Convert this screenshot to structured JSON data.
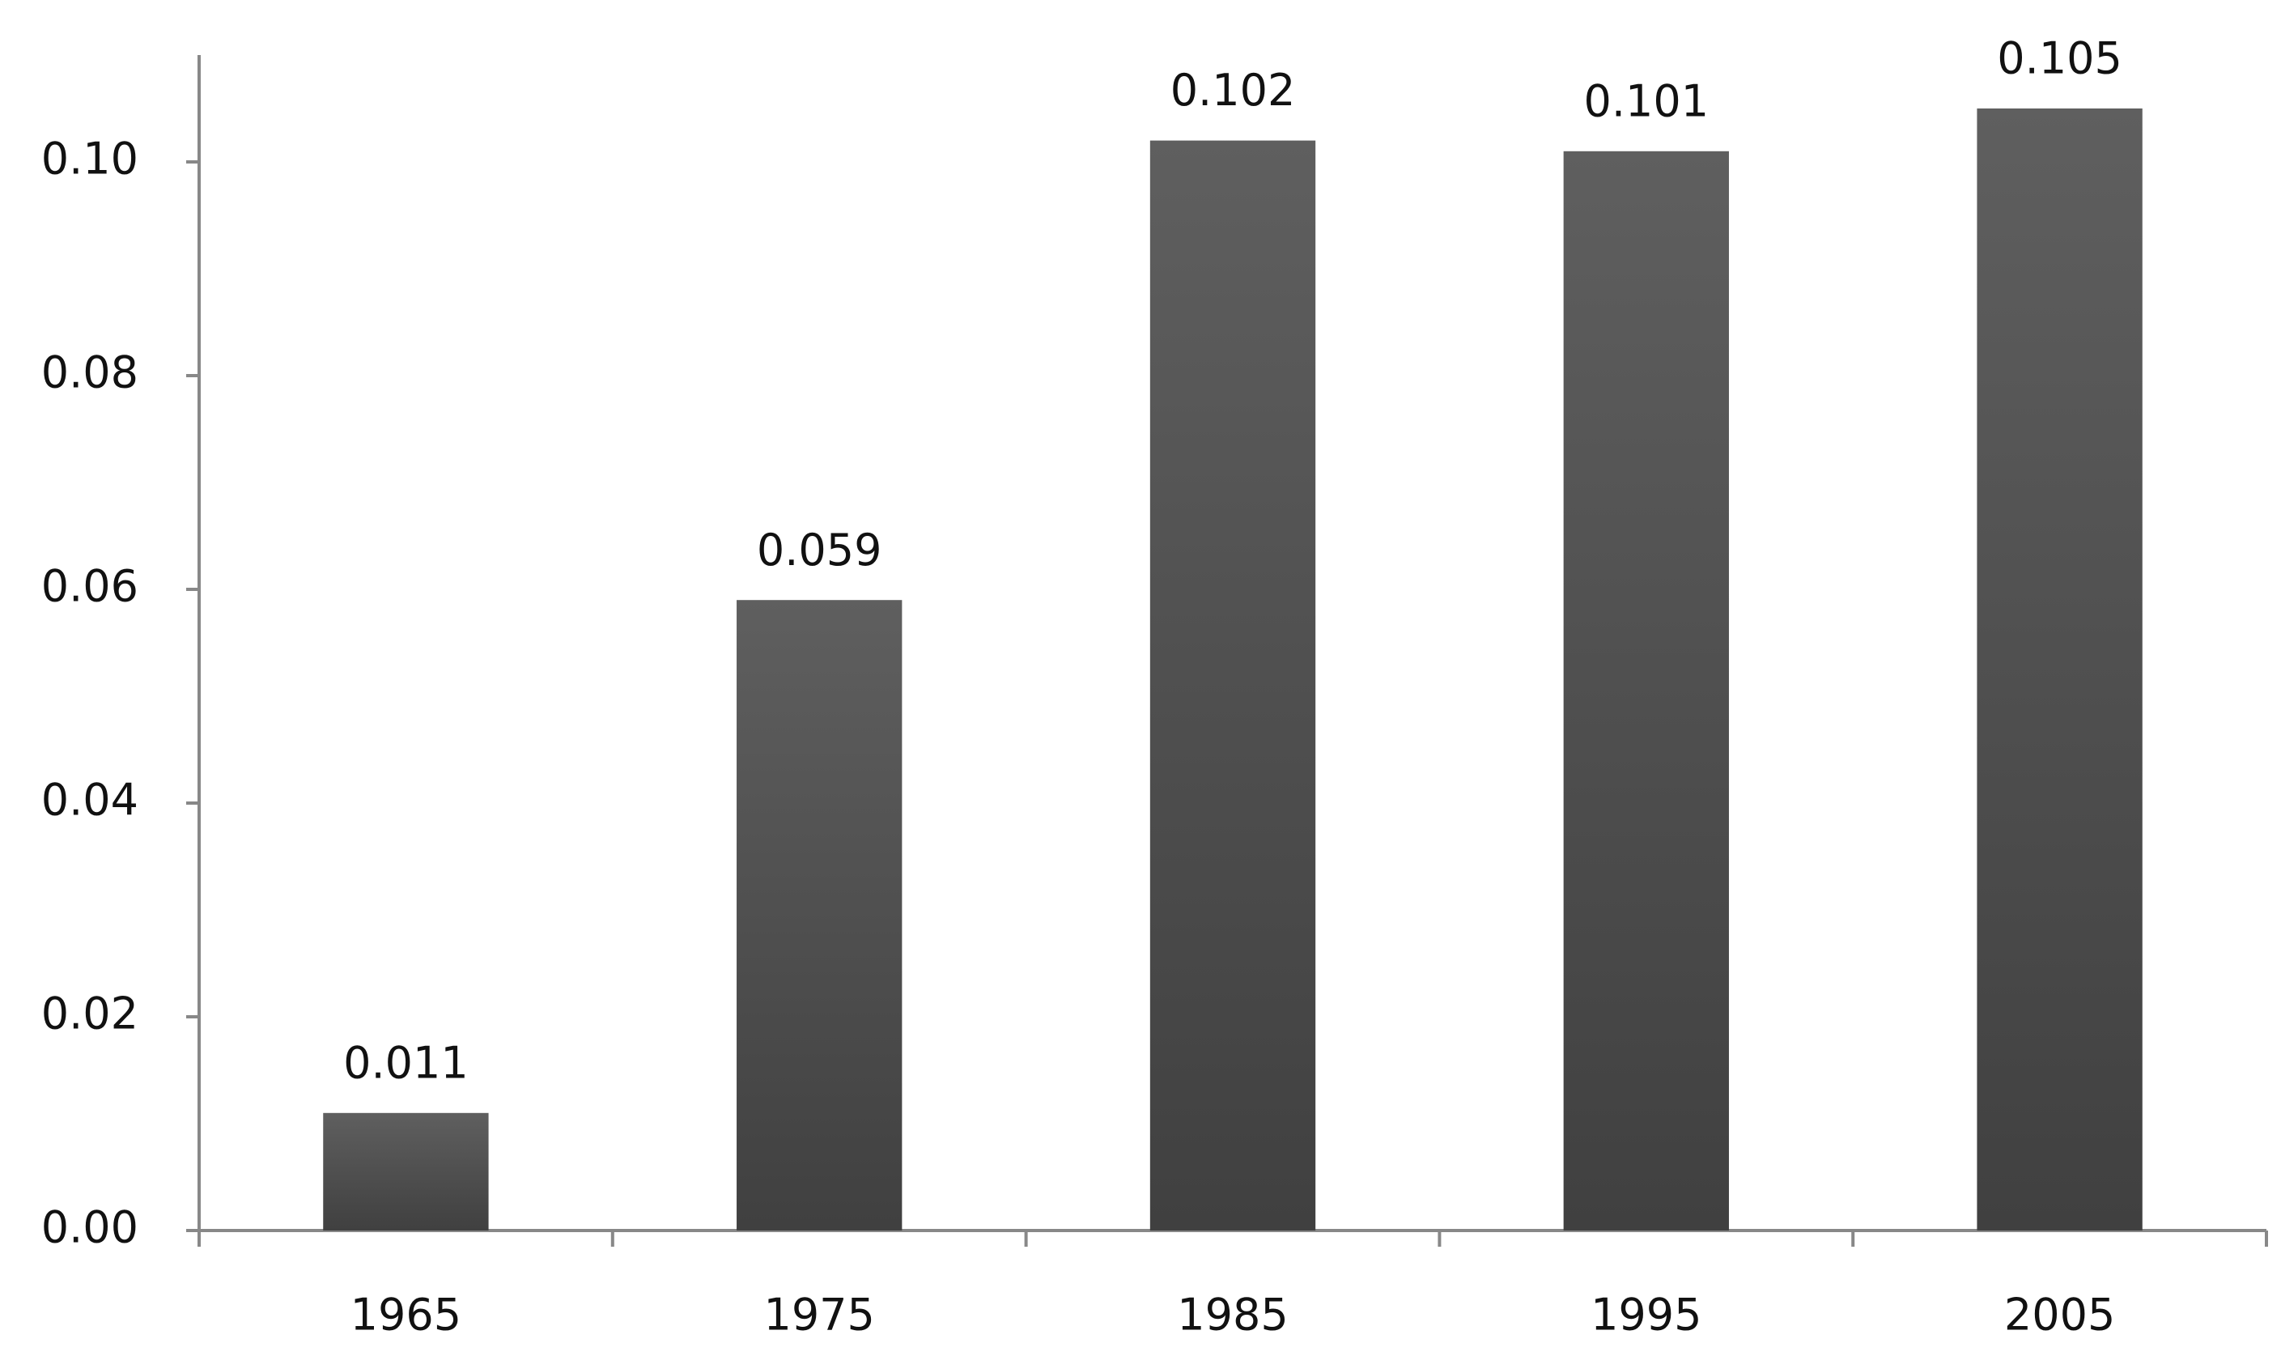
{
  "chart_data": {
    "type": "bar",
    "categories": [
      "1965",
      "1975",
      "1985",
      "1995",
      "2005"
    ],
    "values": [
      0.011,
      0.059,
      0.102,
      0.101,
      0.105
    ],
    "color": "#4e4e4e",
    "ylim": [
      0,
      0.11
    ],
    "yticks": [
      {
        "value": 0,
        "label": "0.00"
      },
      {
        "value": 0.02,
        "label": "0.02"
      },
      {
        "value": 0.04,
        "label": "0.04"
      },
      {
        "value": 0.06,
        "label": "0.06"
      },
      {
        "value": 0.08,
        "label": "0.08"
      },
      {
        "value": 0.1,
        "label": "0.10"
      }
    ],
    "grid": false
  }
}
